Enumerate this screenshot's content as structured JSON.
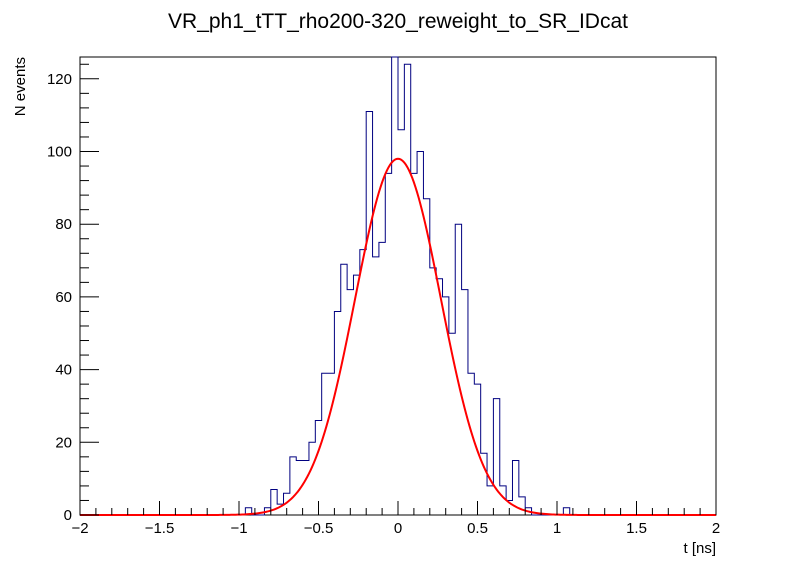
{
  "chart_data": {
    "type": "histogram",
    "title": "VR_ph1_tTT_rho200-320_reweight_to_SR_IDcat",
    "xlabel": "t [ns]",
    "ylabel": "N events",
    "xlim": [
      -2,
      2
    ],
    "ylim": [
      0,
      126
    ],
    "x_ticks": [
      "−2",
      "−1.5",
      "−1",
      "−0.5",
      "0",
      "0.5",
      "1",
      "1.5",
      "2"
    ],
    "y_ticks": [
      "0",
      "20",
      "40",
      "60",
      "80",
      "100",
      "120"
    ],
    "bin_width": 0.04,
    "bins_x_start": [
      -1.08,
      -1.04,
      -1.0,
      -0.96,
      -0.92,
      -0.88,
      -0.84,
      -0.8,
      -0.76,
      -0.72,
      -0.68,
      -0.64,
      -0.6,
      -0.56,
      -0.52,
      -0.48,
      -0.44,
      -0.4,
      -0.36,
      -0.32,
      -0.28,
      -0.24,
      -0.2,
      -0.16,
      -0.12,
      -0.08,
      -0.04,
      0.0,
      0.04,
      0.08,
      0.12,
      0.16,
      0.2,
      0.24,
      0.28,
      0.32,
      0.36,
      0.4,
      0.44,
      0.48,
      0.52,
      0.56,
      0.6,
      0.64,
      0.68,
      0.72,
      0.76,
      0.8,
      0.84,
      0.88,
      0.92,
      0.96,
      1.0,
      1.04,
      1.08
    ],
    "bin_counts": [
      0,
      0,
      0,
      2,
      0,
      0,
      2,
      7,
      3,
      6,
      16,
      15,
      15,
      20,
      26,
      39,
      39,
      56,
      69,
      62,
      66,
      73,
      111,
      71,
      75,
      94,
      126,
      106,
      124,
      94,
      100,
      87,
      68,
      65,
      60,
      50,
      80,
      62,
      39,
      36,
      17,
      8,
      32,
      8,
      4,
      15,
      5,
      2,
      0,
      0,
      0,
      0,
      0,
      2,
      0
    ],
    "series": [
      {
        "kind": "histogram",
        "color": "#000080"
      },
      {
        "kind": "gaussian_fit",
        "color": "#ff0000",
        "amplitude": 98,
        "mean": 0.0,
        "sigma": 0.27
      }
    ]
  }
}
